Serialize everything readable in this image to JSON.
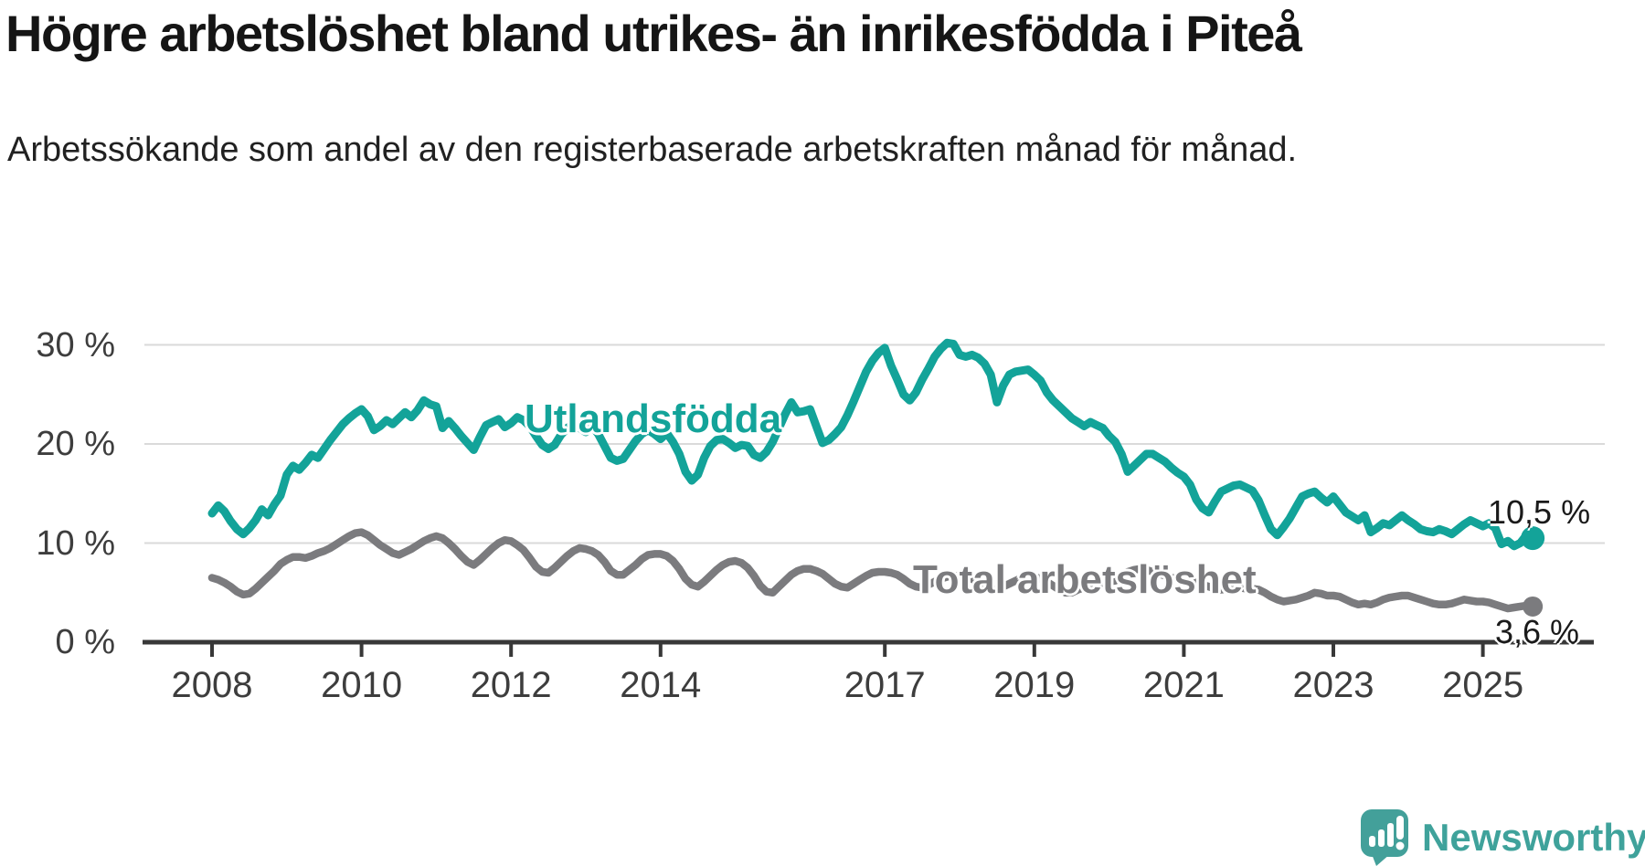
{
  "chart_data": {
    "type": "line",
    "title": "Högre arbetslöshet bland utrikes- än inrikesfödda i Piteå",
    "subtitle": "Arbetssökande som andel av den registerbaserade arbetskraften månad för månad.",
    "xlabel": "",
    "ylabel": "",
    "unit": "%",
    "frequency": "monthly",
    "x_start": {
      "year": 2008,
      "month": 1
    },
    "x_end": {
      "year": 2025,
      "month": 9
    },
    "x_tick_years": [
      2008,
      2010,
      2012,
      2014,
      2017,
      2019,
      2021,
      2023,
      2025
    ],
    "y_ticks": [
      {
        "value": 30,
        "label": "30 %"
      },
      {
        "value": 20,
        "label": "20 %"
      },
      {
        "value": 10,
        "label": "10 %"
      },
      {
        "value": 0,
        "label": "0 %"
      }
    ],
    "ylim": [
      0,
      32
    ],
    "grid": true,
    "legend_position": "inline-labels",
    "series": [
      {
        "name": "Utlandsfödda",
        "color": "#13A399",
        "end_label": "10,5 %",
        "end_value": 10.5,
        "values": [
          13.0,
          13.8,
          13.2,
          12.2,
          11.4,
          10.9,
          11.5,
          12.3,
          13.4,
          12.8,
          13.9,
          14.8,
          16.9,
          17.8,
          17.4,
          18.1,
          18.9,
          18.6,
          19.5,
          20.4,
          21.2,
          22.0,
          22.6,
          23.1,
          23.5,
          22.8,
          21.4,
          21.8,
          22.4,
          22.0,
          22.6,
          23.2,
          22.7,
          23.4,
          24.4,
          24.0,
          23.8,
          21.6,
          22.3,
          21.6,
          20.8,
          20.1,
          19.4,
          20.7,
          21.9,
          22.2,
          22.5,
          21.7,
          22.1,
          22.7,
          22.4,
          21.8,
          20.8,
          19.9,
          19.5,
          19.9,
          20.9,
          21.6,
          22.0,
          21.6,
          21.2,
          21.8,
          21.0,
          19.8,
          18.6,
          18.3,
          18.5,
          19.4,
          20.3,
          21.0,
          21.4,
          21.0,
          20.5,
          21.1,
          20.2,
          19.0,
          17.2,
          16.3,
          16.9,
          18.6,
          19.8,
          20.4,
          20.5,
          20.1,
          19.6,
          19.9,
          19.8,
          18.9,
          18.6,
          19.2,
          20.2,
          21.6,
          23.0,
          24.2,
          23.2,
          23.3,
          23.5,
          21.8,
          20.1,
          20.4,
          21.0,
          21.7,
          22.9,
          24.3,
          25.8,
          27.3,
          28.4,
          29.2,
          29.7,
          27.9,
          26.5,
          25.0,
          24.4,
          25.2,
          26.5,
          27.6,
          28.8,
          29.6,
          30.2,
          30.1,
          29.0,
          28.8,
          29.0,
          28.7,
          28.1,
          27.0,
          24.2,
          25.9,
          27.0,
          27.3,
          27.4,
          27.5,
          27.0,
          26.4,
          25.2,
          24.4,
          23.8,
          23.2,
          22.6,
          22.2,
          21.8,
          22.2,
          21.9,
          21.6,
          20.8,
          20.2,
          19.0,
          17.2,
          17.8,
          18.4,
          19.0,
          19.0,
          18.6,
          18.2,
          17.6,
          17.1,
          16.7,
          15.9,
          14.4,
          13.5,
          13.1,
          14.2,
          15.2,
          15.5,
          15.8,
          15.9,
          15.6,
          15.3,
          14.3,
          12.8,
          11.4,
          10.8,
          11.6,
          12.5,
          13.6,
          14.7,
          15.0,
          15.2,
          14.6,
          14.1,
          14.7,
          13.9,
          13.1,
          12.7,
          12.3,
          12.8,
          11.1,
          11.5,
          12.0,
          11.8,
          12.3,
          12.8,
          12.3,
          11.9,
          11.4,
          11.2,
          11.1,
          11.4,
          11.2,
          10.9,
          11.4,
          11.9,
          12.3,
          12.0,
          11.7,
          12.0,
          11.5,
          9.9,
          10.2,
          9.7,
          10.0,
          10.8,
          10.5
        ]
      },
      {
        "name": "Total arbetslöshet",
        "color": "#7B7B7E",
        "end_label": "3,6 %",
        "end_value": 3.6,
        "values": [
          6.5,
          6.3,
          6.0,
          5.6,
          5.1,
          4.8,
          4.9,
          5.4,
          6.0,
          6.6,
          7.2,
          7.9,
          8.3,
          8.6,
          8.6,
          8.5,
          8.7,
          9.0,
          9.2,
          9.5,
          9.9,
          10.3,
          10.7,
          11.0,
          11.1,
          10.8,
          10.3,
          9.8,
          9.4,
          9.0,
          8.8,
          9.1,
          9.4,
          9.8,
          10.2,
          10.5,
          10.7,
          10.5,
          10.0,
          9.4,
          8.7,
          8.1,
          7.8,
          8.3,
          8.9,
          9.5,
          10.0,
          10.3,
          10.2,
          9.8,
          9.3,
          8.5,
          7.6,
          7.1,
          7.0,
          7.5,
          8.1,
          8.7,
          9.2,
          9.5,
          9.4,
          9.2,
          8.8,
          8.1,
          7.2,
          6.8,
          6.8,
          7.3,
          7.8,
          8.4,
          8.8,
          8.9,
          8.9,
          8.7,
          8.2,
          7.4,
          6.4,
          5.8,
          5.6,
          6.1,
          6.7,
          7.3,
          7.8,
          8.1,
          8.2,
          8.0,
          7.5,
          6.7,
          5.7,
          5.1,
          5.0,
          5.6,
          6.2,
          6.8,
          7.2,
          7.4,
          7.4,
          7.2,
          6.9,
          6.4,
          5.9,
          5.6,
          5.5,
          5.9,
          6.3,
          6.7,
          7.0,
          7.1,
          7.1,
          7.0,
          6.8,
          6.4,
          5.9,
          5.6,
          5.5,
          5.8,
          6.1,
          6.4,
          6.6,
          6.7,
          6.7,
          6.6,
          6.4,
          6.0,
          5.6,
          5.3,
          5.3,
          5.6,
          5.9,
          6.2,
          6.5,
          6.6,
          6.6,
          6.4,
          6.1,
          5.7,
          5.3,
          5.0,
          5.0,
          5.3,
          5.5,
          5.7,
          5.9,
          6.0,
          6.1,
          6.2,
          6.6,
          7.1,
          7.3,
          7.4,
          7.3,
          7.1,
          6.9,
          6.7,
          6.5,
          6.4,
          6.3,
          6.2,
          6.0,
          5.8,
          5.6,
          5.4,
          5.3,
          5.4,
          5.4,
          5.5,
          5.4,
          5.4,
          5.3,
          5.0,
          4.6,
          4.3,
          4.1,
          4.2,
          4.3,
          4.5,
          4.7,
          5.0,
          4.9,
          4.7,
          4.7,
          4.6,
          4.3,
          4.0,
          3.8,
          3.9,
          3.8,
          4.0,
          4.3,
          4.5,
          4.6,
          4.7,
          4.7,
          4.5,
          4.3,
          4.1,
          3.9,
          3.8,
          3.8,
          3.9,
          4.1,
          4.3,
          4.2,
          4.1,
          4.1,
          4.0,
          3.8,
          3.6,
          3.4,
          3.5,
          3.6,
          3.7,
          3.6
        ]
      }
    ],
    "colors": {
      "accent_teal": "#13A399",
      "line_gray": "#7B7B7E",
      "gridline": "#DADADA",
      "axis": "#383838",
      "axis_text": "#3D3D3D",
      "title_text": "#151515",
      "annotation_text": "#1A1A1A"
    }
  },
  "branding": {
    "logo_text": "Newsworthy",
    "logo_icon_color": "#43A09A",
    "logo_text_color": "#3FA29B"
  }
}
